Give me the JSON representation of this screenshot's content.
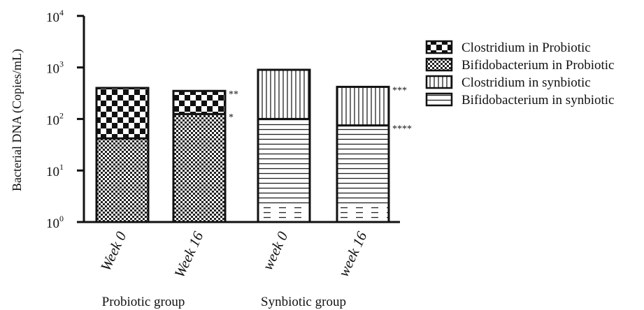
{
  "chart_data": {
    "type": "bar",
    "stacked": true,
    "y_scale": "log10",
    "ylim": [
      1,
      10000
    ],
    "ylabel": "Bacterial DNA (Copies/mL)",
    "y_ticks": [
      {
        "value": 1,
        "base": "10",
        "exp": "0"
      },
      {
        "value": 10,
        "base": "10",
        "exp": "1"
      },
      {
        "value": 100,
        "base": "10",
        "exp": "2"
      },
      {
        "value": 1000,
        "base": "10",
        "exp": "3"
      },
      {
        "value": 10000,
        "base": "10",
        "exp": "4"
      }
    ],
    "categories": [
      "Week 0",
      "Week 16",
      "week 0",
      "week 16"
    ],
    "groups": [
      {
        "label": "Probiotic group",
        "categories": [
          0,
          1
        ]
      },
      {
        "label": "Synbiotic group",
        "categories": [
          2,
          3
        ]
      }
    ],
    "series": [
      {
        "name": "Clostridium in Probiotic",
        "pattern": "checker-coarse"
      },
      {
        "name": "Bifidobacterium in Probiotic",
        "pattern": "checker-fine"
      },
      {
        "name": "Clostridium in synbiotic",
        "pattern": "vertical-lines"
      },
      {
        "name": "Bifidobacterium in synbiotic",
        "pattern": "horizontal-lines"
      }
    ],
    "bars": [
      {
        "category": "Week 0",
        "segments": [
          {
            "series": "Bifidobacterium in Probiotic",
            "top": 42
          },
          {
            "series": "Clostridium in Probiotic",
            "top": 400
          }
        ],
        "annotations": []
      },
      {
        "category": "Week 16",
        "segments": [
          {
            "series": "Bifidobacterium in Probiotic",
            "top": 125
          },
          {
            "series": "Clostridium in Probiotic",
            "top": 350
          }
        ],
        "annotations": [
          {
            "text": "**",
            "at": 350
          },
          {
            "text": "*",
            "at": 125
          }
        ]
      },
      {
        "category": "week 0",
        "segments": [
          {
            "series": "Bifidobacterium in synbiotic",
            "top": 100
          },
          {
            "series": "Clostridium in synbiotic",
            "top": 900
          }
        ],
        "annotations": []
      },
      {
        "category": "week 16",
        "segments": [
          {
            "series": "Bifidobacterium in synbiotic",
            "top": 75
          },
          {
            "series": "Clostridium in synbiotic",
            "top": 420
          }
        ],
        "annotations": [
          {
            "text": "***",
            "at": 420
          },
          {
            "text": "****",
            "at": 75
          }
        ]
      }
    ],
    "grid": false,
    "legend_position": "right"
  }
}
